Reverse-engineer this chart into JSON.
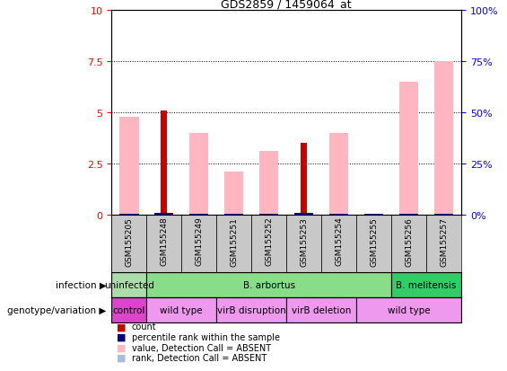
{
  "title": "GDS2859 / 1459064_at",
  "samples": [
    "GSM155205",
    "GSM155248",
    "GSM155249",
    "GSM155251",
    "GSM155252",
    "GSM155253",
    "GSM155254",
    "GSM155255",
    "GSM155256",
    "GSM155257"
  ],
  "count_values": [
    0,
    5.1,
    0,
    0,
    0,
    3.5,
    0,
    0,
    0,
    0
  ],
  "rank_values": [
    0.05,
    0.08,
    0.05,
    0.05,
    0.05,
    0.08,
    0.05,
    0.05,
    0.05,
    0.05
  ],
  "value_absent": [
    4.8,
    0,
    4.0,
    2.1,
    3.1,
    0,
    4.0,
    0,
    6.5,
    7.5
  ],
  "rank_absent": [
    0.05,
    0,
    0.05,
    0.05,
    0.05,
    0,
    0.05,
    0.05,
    0.05,
    0.05
  ],
  "ylim": [
    0,
    10
  ],
  "y2lim": [
    0,
    100
  ],
  "yticks": [
    0,
    2.5,
    5.0,
    7.5,
    10
  ],
  "y2ticks": [
    0,
    25,
    50,
    75,
    100
  ],
  "count_color": "#CC0000",
  "rank_color": "#00008B",
  "value_absent_color": "#FFB6C1",
  "rank_absent_color": "#AABBDD",
  "bg_color": "#FFFFFF",
  "sample_bg": "#C8C8C8",
  "infection_uninfected_color": "#AADDAA",
  "infection_arbortus_color": "#88DD88",
  "infection_melitensis_color": "#33CC66",
  "genotype_control_color": "#DD44CC",
  "genotype_other_color": "#EE99EE",
  "legend_items": [
    {
      "color": "#CC0000",
      "label": "count"
    },
    {
      "color": "#00008B",
      "label": "percentile rank within the sample"
    },
    {
      "color": "#FFB6C1",
      "label": "value, Detection Call = ABSENT"
    },
    {
      "color": "#AABBDD",
      "label": "rank, Detection Call = ABSENT"
    }
  ],
  "infection_data": [
    {
      "start": 0,
      "end": 1,
      "label": "uninfected",
      "color": "#AADDAA"
    },
    {
      "start": 1,
      "end": 8,
      "label": "B. arbortus",
      "color": "#88DD88"
    },
    {
      "start": 8,
      "end": 10,
      "label": "B. melitensis",
      "color": "#33CC66"
    }
  ],
  "genotype_data": [
    {
      "start": 0,
      "end": 1,
      "label": "control",
      "color": "#DD44CC"
    },
    {
      "start": 1,
      "end": 3,
      "label": "wild type",
      "color": "#EE99EE"
    },
    {
      "start": 3,
      "end": 5,
      "label": "virB disruption",
      "color": "#EE99EE"
    },
    {
      "start": 5,
      "end": 7,
      "label": "virB deletion",
      "color": "#EE99EE"
    },
    {
      "start": 7,
      "end": 10,
      "label": "wild type",
      "color": "#EE99EE"
    }
  ]
}
